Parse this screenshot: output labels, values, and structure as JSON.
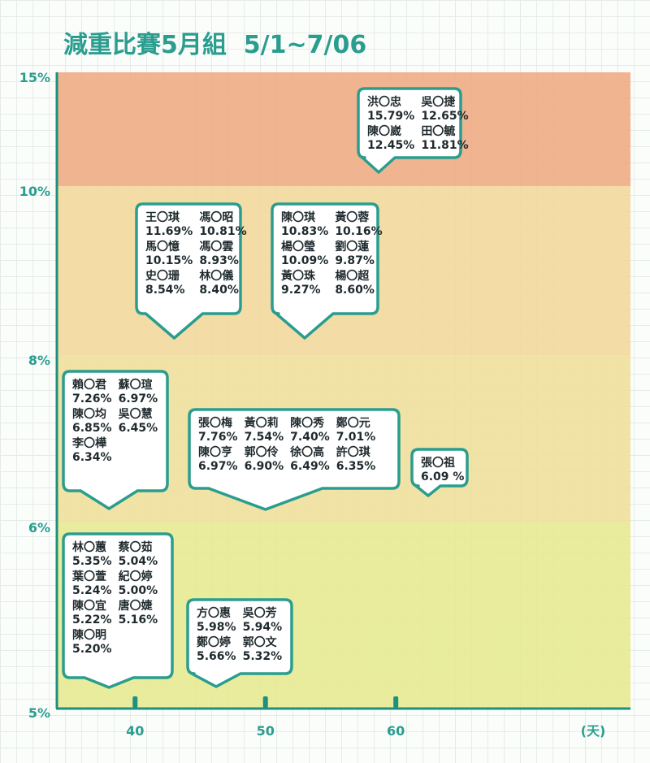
{
  "chart_data": {
    "type": "table",
    "title": "減重比賽5月組",
    "subtitle": "5/1~7/06",
    "xlabel": "(天)",
    "xlim": [
      34,
      78
    ],
    "x_ticks": [
      40,
      50,
      60
    ],
    "y_ticks": [
      "15%",
      "10%",
      "8%",
      "6%",
      "5%"
    ],
    "bands": [
      {
        "from": "10%",
        "to": "15%",
        "color": "#efaa82"
      },
      {
        "from": "8%",
        "to": "10%",
        "color": "#f3d79a"
      },
      {
        "from": "6%",
        "to": "8%",
        "color": "#efdf98"
      },
      {
        "from": "5%",
        "to": "6%",
        "color": "#e6e98f"
      }
    ],
    "groups": [
      {
        "band": "10%",
        "day": 57,
        "entries": [
          {
            "name": "洪〇忠",
            "value": "15.79%"
          },
          {
            "name": "吳〇捷",
            "value": "12.65%"
          },
          {
            "name": "陳〇崴",
            "value": "12.45%"
          },
          {
            "name": "田〇毓",
            "value": "11.81%"
          }
        ]
      },
      {
        "band": "8%",
        "day": 43,
        "entries": [
          {
            "name": "王〇琪",
            "value": "11.69%"
          },
          {
            "name": "馮〇昭",
            "value": "10.81%"
          },
          {
            "name": "馬〇憶",
            "value": "10.15%"
          },
          {
            "name": "馮〇雲",
            "value": "8.93%"
          },
          {
            "name": "史〇珊",
            "value": "8.54%"
          },
          {
            "name": "林〇儀",
            "value": "8.40%"
          }
        ]
      },
      {
        "band": "8%",
        "day": 52,
        "entries": [
          {
            "name": "陳〇琪",
            "value": "10.83%"
          },
          {
            "name": "黃〇蓉",
            "value": "10.16%"
          },
          {
            "name": "楊〇瑩",
            "value": "10.09%"
          },
          {
            "name": "劉〇蓮",
            "value": "9.87%"
          },
          {
            "name": "黃〇珠",
            "value": "9.27%"
          },
          {
            "name": "楊〇超",
            "value": "8.60%"
          }
        ]
      },
      {
        "band": "6%",
        "day": 38,
        "entries": [
          {
            "name": "賴〇君",
            "value": "7.26%"
          },
          {
            "name": "蘇〇瑄",
            "value": "6.97%"
          },
          {
            "name": "陳〇均",
            "value": "6.85%"
          },
          {
            "name": "吳〇慧",
            "value": "6.45%"
          },
          {
            "name": "李〇樺",
            "value": "6.34%"
          }
        ]
      },
      {
        "band": "6%",
        "day": 50,
        "entries": [
          {
            "name": "張〇梅",
            "value": "7.76%"
          },
          {
            "name": "黃〇莉",
            "value": "7.54%"
          },
          {
            "name": "陳〇秀",
            "value": "7.40%"
          },
          {
            "name": "鄭〇元",
            "value": "7.01%"
          },
          {
            "name": "陳〇亨",
            "value": "6.97%"
          },
          {
            "name": "郭〇伶",
            "value": "6.90%"
          },
          {
            "name": "徐〇高",
            "value": "6.49%"
          },
          {
            "name": "許〇琪",
            "value": "6.35%"
          }
        ]
      },
      {
        "band": "6%",
        "day": 59,
        "entries": [
          {
            "name": "張〇祖",
            "value": "6.09 %"
          }
        ]
      },
      {
        "band": "5%",
        "day": 38,
        "entries": [
          {
            "name": "林〇蕙",
            "value": "5.35%"
          },
          {
            "name": "蔡〇茹",
            "value": "5.04%"
          },
          {
            "name": "葉〇萱",
            "value": "5.24%"
          },
          {
            "name": "紀〇婷",
            "value": "5.00%"
          },
          {
            "name": "陳〇宜",
            "value": "5.22%"
          },
          {
            "name": "唐〇婕",
            "value": "5.16%"
          },
          {
            "name": "陳〇明",
            "value": "5.20%"
          }
        ]
      },
      {
        "band": "5%",
        "day": 46,
        "entries": [
          {
            "name": "方〇惠",
            "value": "5.98%"
          },
          {
            "name": "吳〇芳",
            "value": "5.94%"
          },
          {
            "name": "鄭〇婷",
            "value": "5.66%"
          },
          {
            "name": "郭〇文",
            "value": "5.32%"
          }
        ]
      }
    ]
  },
  "colors": {
    "accent": "#2a9d8f",
    "axis": "#1f8f7e",
    "text": "#1f2a2e",
    "card_fill": "#ffffff"
  }
}
